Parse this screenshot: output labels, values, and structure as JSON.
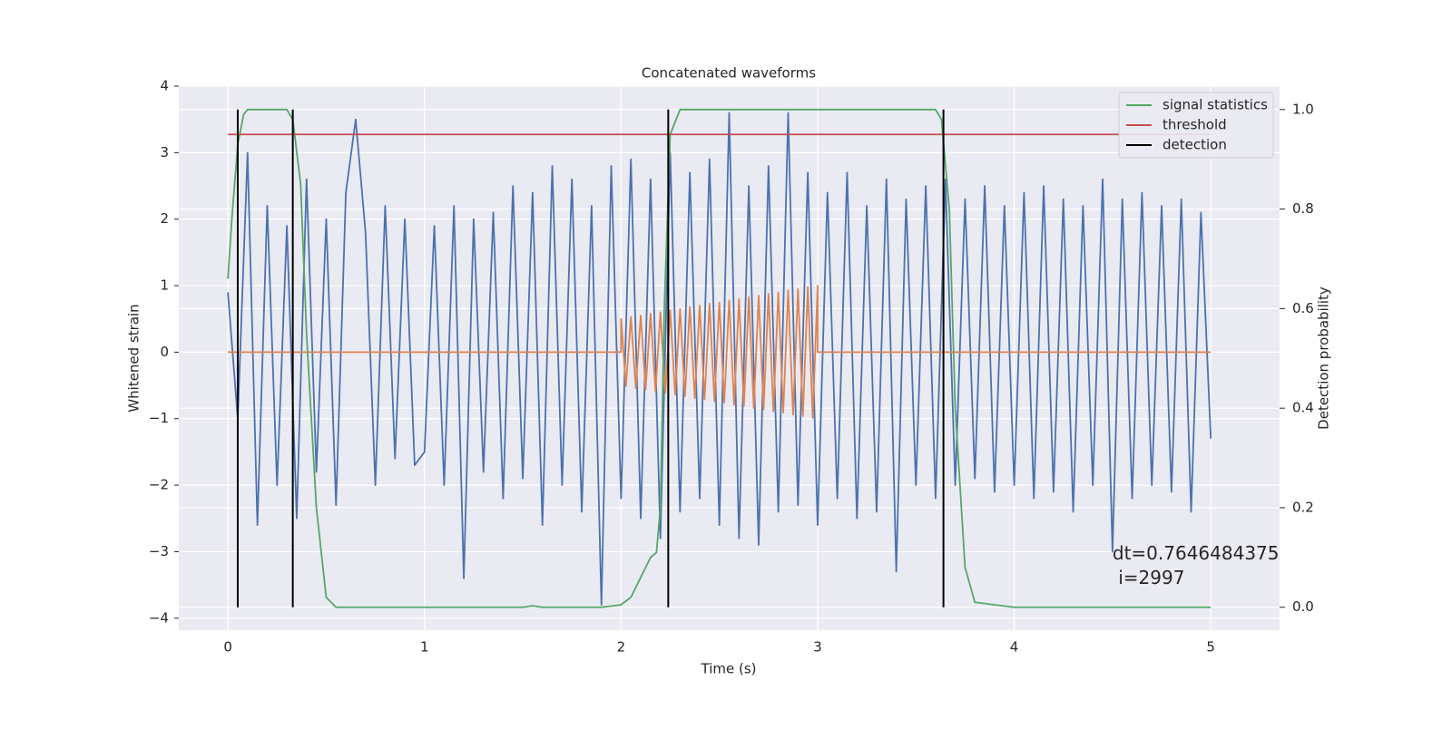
{
  "chart_data": {
    "type": "line",
    "title": "Concatenated waveforms",
    "xlabel": "Time (s)",
    "ylabel": "Whitened strain",
    "y2label": "Detection probability",
    "xlim": [
      -0.25,
      5.35
    ],
    "ylim": [
      -4.18,
      4.0
    ],
    "y2lim": [
      -0.046,
      1.047
    ],
    "xticks": [
      0,
      1,
      2,
      3,
      4,
      5
    ],
    "yticks": [
      {
        "value": -4,
        "label": "−4"
      },
      {
        "value": -3,
        "label": "−3"
      },
      {
        "value": -2,
        "label": "−2"
      },
      {
        "value": -1,
        "label": "−1"
      },
      0,
      1,
      2,
      3,
      4
    ],
    "y2ticks": [
      {
        "value": 0,
        "label": "0.0"
      },
      0.2,
      0.4,
      0.6,
      0.8,
      {
        "value": 1,
        "label": "1.0"
      }
    ],
    "grid": true,
    "background": "#eaeaf2",
    "legend": "upper right",
    "series": [
      {
        "color": "#4c72b0",
        "kind": "line",
        "x": [
          0,
          0.05,
          0.1,
          0.15,
          0.2,
          0.25,
          0.3,
          0.35,
          0.4,
          0.45,
          0.5,
          0.55,
          0.6,
          0.65,
          0.7,
          0.75,
          0.8,
          0.85,
          0.9,
          0.95,
          1.0,
          1.05,
          1.1,
          1.15,
          1.2,
          1.25,
          1.3,
          1.35,
          1.4,
          1.45,
          1.5,
          1.55,
          1.6,
          1.65,
          1.7,
          1.75,
          1.8,
          1.85,
          1.9,
          1.95,
          2.0,
          2.05,
          2.1,
          2.15,
          2.2,
          2.25,
          2.3,
          2.35,
          2.4,
          2.45,
          2.5,
          2.55,
          2.6,
          2.65,
          2.7,
          2.75,
          2.8,
          2.85,
          2.9,
          2.95,
          3.0,
          3.05,
          3.1,
          3.15,
          3.2,
          3.25,
          3.3,
          3.35,
          3.4,
          3.45,
          3.5,
          3.55,
          3.6,
          3.65,
          3.7,
          3.75,
          3.8,
          3.85,
          3.9,
          3.95,
          4.0,
          4.05,
          4.1,
          4.15,
          4.2,
          4.25,
          4.3,
          4.35,
          4.4,
          4.45,
          4.5,
          4.55,
          4.6,
          4.65,
          4.7,
          4.75,
          4.8,
          4.85,
          4.9,
          4.95,
          5.0
        ],
        "values": [
          0.9,
          -1.0,
          3.0,
          -2.6,
          2.2,
          -2.0,
          1.9,
          -2.5,
          2.6,
          -1.8,
          2.0,
          -2.3,
          2.4,
          3.5,
          1.8,
          -2.0,
          2.2,
          -1.6,
          2.0,
          -1.7,
          -1.5,
          1.9,
          -2.0,
          2.2,
          -3.4,
          2.0,
          -1.8,
          2.1,
          -2.2,
          2.5,
          -1.9,
          2.4,
          -2.6,
          2.8,
          -2.0,
          2.6,
          -2.4,
          2.2,
          -3.8,
          2.8,
          -2.2,
          2.9,
          -2.5,
          2.6,
          -2.8,
          3.0,
          -2.4,
          2.7,
          -2.2,
          2.9,
          -2.6,
          3.6,
          -2.8,
          2.5,
          -2.9,
          2.8,
          -2.4,
          3.6,
          -2.3,
          2.7,
          -2.6,
          2.4,
          -2.2,
          2.7,
          -2.5,
          2.2,
          -2.4,
          2.6,
          -3.3,
          2.3,
          -2.0,
          2.5,
          -2.2,
          2.6,
          -2.0,
          2.3,
          -1.9,
          2.5,
          -2.1,
          2.2,
          -2.0,
          2.4,
          -2.2,
          2.5,
          -2.1,
          2.3,
          -2.4,
          2.2,
          -2.0,
          2.6,
          -3.0,
          2.3,
          -2.2,
          2.4,
          -2.0,
          2.2,
          -2.1,
          2.3,
          -2.4,
          2.1,
          -1.3
        ]
      },
      {
        "color": "#dd8452",
        "kind": "line",
        "x": [
          0,
          2.0,
          2.0,
          2.025,
          2.05,
          2.075,
          2.1,
          2.125,
          2.15,
          2.175,
          2.2,
          2.225,
          2.25,
          2.275,
          2.3,
          2.325,
          2.35,
          2.375,
          2.4,
          2.425,
          2.45,
          2.475,
          2.5,
          2.525,
          2.55,
          2.575,
          2.6,
          2.625,
          2.65,
          2.675,
          2.7,
          2.725,
          2.75,
          2.775,
          2.8,
          2.825,
          2.85,
          2.875,
          2.9,
          2.925,
          2.95,
          2.975,
          3.0,
          3.0,
          5.0
        ],
        "values": [
          0,
          0,
          0.5,
          -0.51,
          0.53,
          -0.54,
          0.55,
          -0.56,
          0.58,
          -0.59,
          0.6,
          -0.61,
          0.63,
          -0.64,
          0.65,
          -0.66,
          0.68,
          -0.69,
          0.7,
          -0.71,
          0.73,
          -0.74,
          0.75,
          -0.76,
          0.78,
          -0.79,
          0.8,
          -0.81,
          0.83,
          -0.84,
          0.85,
          -0.86,
          0.88,
          -0.89,
          0.9,
          -0.91,
          0.93,
          -0.94,
          0.95,
          -0.96,
          0.98,
          -0.99,
          1.0,
          0,
          0
        ]
      },
      {
        "name": "signal statistics",
        "color": "#55a868",
        "kind": "line",
        "axis": "y2",
        "x": [
          0,
          0.02,
          0.05,
          0.08,
          0.1,
          0.15,
          0.3,
          0.33,
          0.37,
          0.4,
          0.45,
          0.5,
          0.55,
          1.0,
          1.5,
          1.55,
          1.6,
          1.9,
          2.0,
          2.05,
          2.1,
          2.15,
          2.18,
          2.2,
          2.22,
          2.25,
          2.3,
          2.5,
          3.0,
          3.5,
          3.6,
          3.63,
          3.67,
          3.7,
          3.75,
          3.8,
          4.0,
          5.0
        ],
        "values": [
          0.66,
          0.78,
          0.93,
          0.99,
          1.0,
          1.0,
          1.0,
          0.98,
          0.85,
          0.55,
          0.2,
          0.02,
          0.0,
          0.0,
          0.0,
          0.003,
          0.0,
          0.0,
          0.005,
          0.02,
          0.06,
          0.1,
          0.11,
          0.2,
          0.6,
          0.95,
          1.0,
          1.0,
          1.0,
          1.0,
          1.0,
          0.98,
          0.8,
          0.4,
          0.08,
          0.01,
          0.0,
          0.0
        ]
      },
      {
        "name": "threshold",
        "color": "#c44e52",
        "kind": "line",
        "axis": "y2",
        "x": [
          0,
          5
        ],
        "values": [
          0.95,
          0.95
        ]
      },
      {
        "name": "detection",
        "color": "#000000",
        "kind": "vline",
        "axis": "y2",
        "x": [
          0.05,
          0.33,
          2.24,
          3.64
        ],
        "ymin": 0,
        "ymax": 1
      }
    ],
    "annotation": {
      "text": "dt=0.7646484375\n i=2997",
      "x": 4.5,
      "y": -2.85
    }
  }
}
